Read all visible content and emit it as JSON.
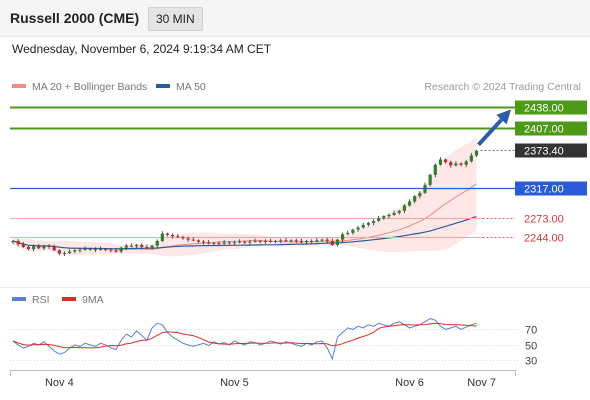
{
  "header": {
    "title": "Russell 2000 (CME)",
    "interval": "30 MIN",
    "timestamp": "Wednesday, November 6, 2024 9:19:34 AM CET"
  },
  "chart_data": {
    "type": "candlestick",
    "credit": "Research © 2024 Trading Central",
    "legend": [
      {
        "label": "MA 20 + Bollinger Bands",
        "color": "#f28b82"
      },
      {
        "label": "MA 50",
        "color": "#2e5c9a"
      }
    ],
    "x_ticks": [
      "Nov 4",
      "Nov 5",
      "Nov 6",
      "Nov 7"
    ],
    "levels": [
      {
        "value": 2438.0,
        "label": "2438.00",
        "kind": "resistance",
        "color": "#4c9a18"
      },
      {
        "value": 2407.0,
        "label": "2407.00",
        "kind": "resistance",
        "color": "#4c9a18"
      },
      {
        "value": 2373.4,
        "label": "2373.40",
        "kind": "last-price",
        "color": "#333333"
      },
      {
        "value": 2317.0,
        "label": "2317.00",
        "kind": "pivot",
        "color": "#2a5bd7"
      },
      {
        "value": 2273.0,
        "label": "2273.00",
        "kind": "support",
        "color": "#e06060"
      },
      {
        "value": 2244.0,
        "label": "2244.00",
        "kind": "support",
        "color": "#e06060"
      }
    ],
    "price_range": [
      2187,
      2452
    ],
    "closes": [
      2238,
      2233,
      2229,
      2226,
      2230,
      2227,
      2231,
      2229,
      2224,
      2219,
      2220,
      2222,
      2224,
      2225,
      2226,
      2226,
      2225,
      2226,
      2225,
      2224,
      2222,
      2228,
      2231,
      2230,
      2232,
      2229,
      2227,
      2231,
      2238,
      2249,
      2247,
      2245,
      2244,
      2242,
      2240,
      2239,
      2237,
      2236,
      2234,
      2235,
      2234,
      2236,
      2235,
      2236,
      2237,
      2236,
      2237,
      2238,
      2237,
      2238,
      2237,
      2238,
      2239,
      2238,
      2239,
      2238,
      2236,
      2238,
      2237,
      2239,
      2240,
      2238,
      2232,
      2240,
      2248,
      2250,
      2255,
      2258,
      2262,
      2265,
      2268,
      2272,
      2275,
      2277,
      2280,
      2283,
      2291,
      2297,
      2305,
      2310,
      2322,
      2337,
      2352,
      2360,
      2356,
      2351,
      2354,
      2352,
      2357,
      2366,
      2373
    ],
    "opens": [
      2236,
      2238,
      2233,
      2229,
      2226,
      2230,
      2227,
      2231,
      2229,
      2224,
      2219,
      2220,
      2222,
      2224,
      2225,
      2226,
      2226,
      2225,
      2226,
      2225,
      2224,
      2222,
      2228,
      2231,
      2230,
      2232,
      2229,
      2227,
      2231,
      2238,
      2249,
      2247,
      2245,
      2244,
      2242,
      2240,
      2239,
      2237,
      2236,
      2234,
      2235,
      2234,
      2236,
      2235,
      2236,
      2237,
      2236,
      2237,
      2238,
      2237,
      2238,
      2237,
      2238,
      2239,
      2238,
      2239,
      2238,
      2236,
      2238,
      2237,
      2239,
      2240,
      2238,
      2232,
      2240,
      2248,
      2250,
      2255,
      2258,
      2262,
      2265,
      2268,
      2272,
      2275,
      2277,
      2280,
      2283,
      2291,
      2297,
      2305,
      2310,
      2322,
      2337,
      2352,
      2360,
      2356,
      2351,
      2354,
      2352,
      2357,
      2366
    ],
    "arrow": {
      "direction": "up",
      "target": 2438.0
    },
    "rsi": {
      "legend": [
        {
          "label": "RSI",
          "color": "#5b7fd6"
        },
        {
          "label": "9MA",
          "color": "#d93025"
        }
      ],
      "range": [
        20,
        90
      ],
      "levels": [
        70,
        50,
        30
      ],
      "values": [
        55,
        50,
        46,
        48,
        52,
        50,
        54,
        48,
        42,
        38,
        40,
        46,
        50,
        48,
        52,
        50,
        48,
        52,
        50,
        46,
        44,
        56,
        64,
        60,
        68,
        62,
        56,
        72,
        78,
        76,
        66,
        60,
        56,
        52,
        50,
        48,
        50,
        52,
        49,
        54,
        51,
        53,
        50,
        55,
        52,
        50,
        54,
        53,
        50,
        52,
        55,
        53,
        51,
        54,
        52,
        50,
        48,
        52,
        50,
        54,
        55,
        46,
        32,
        60,
        66,
        72,
        70,
        74,
        72,
        76,
        74,
        78,
        76,
        74,
        78,
        80,
        76,
        72,
        74,
        76,
        80,
        84,
        82,
        74,
        70,
        72,
        74,
        70,
        73,
        76,
        78
      ]
    }
  }
}
